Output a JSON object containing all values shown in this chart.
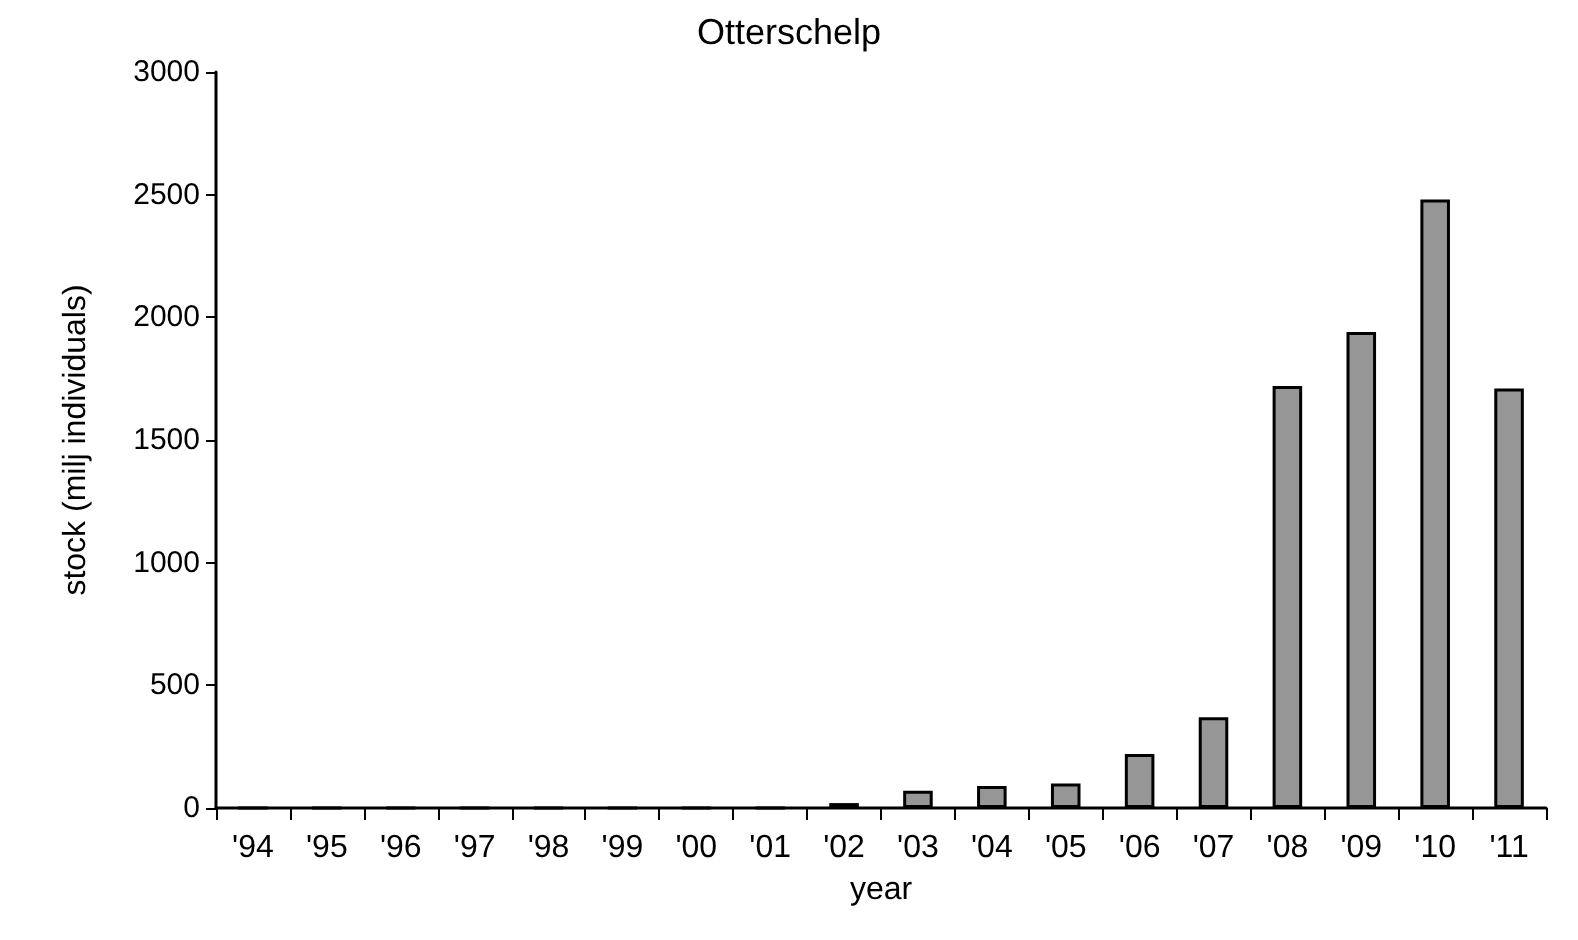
{
  "chart_data": {
    "type": "bar",
    "title": "Otterschelp",
    "xlabel": "year",
    "ylabel": "stock (milj individuals)",
    "categories": [
      "'94",
      "'95",
      "'96",
      "'97",
      "'98",
      "'99",
      "'00",
      "'01",
      "'02",
      "'03",
      "'04",
      "'05",
      "'06",
      "'07",
      "'08",
      "'09",
      "'10",
      "'11"
    ],
    "values": [
      0,
      0,
      0,
      0,
      0,
      0,
      0,
      0,
      20,
      70,
      90,
      100,
      220,
      370,
      1720,
      1940,
      2480,
      1710
    ],
    "color": "#969696",
    "ylim": [
      0,
      3000
    ],
    "yticks": [
      0,
      500,
      1000,
      1500,
      2000,
      2500,
      3000
    ],
    "grid": false
  }
}
